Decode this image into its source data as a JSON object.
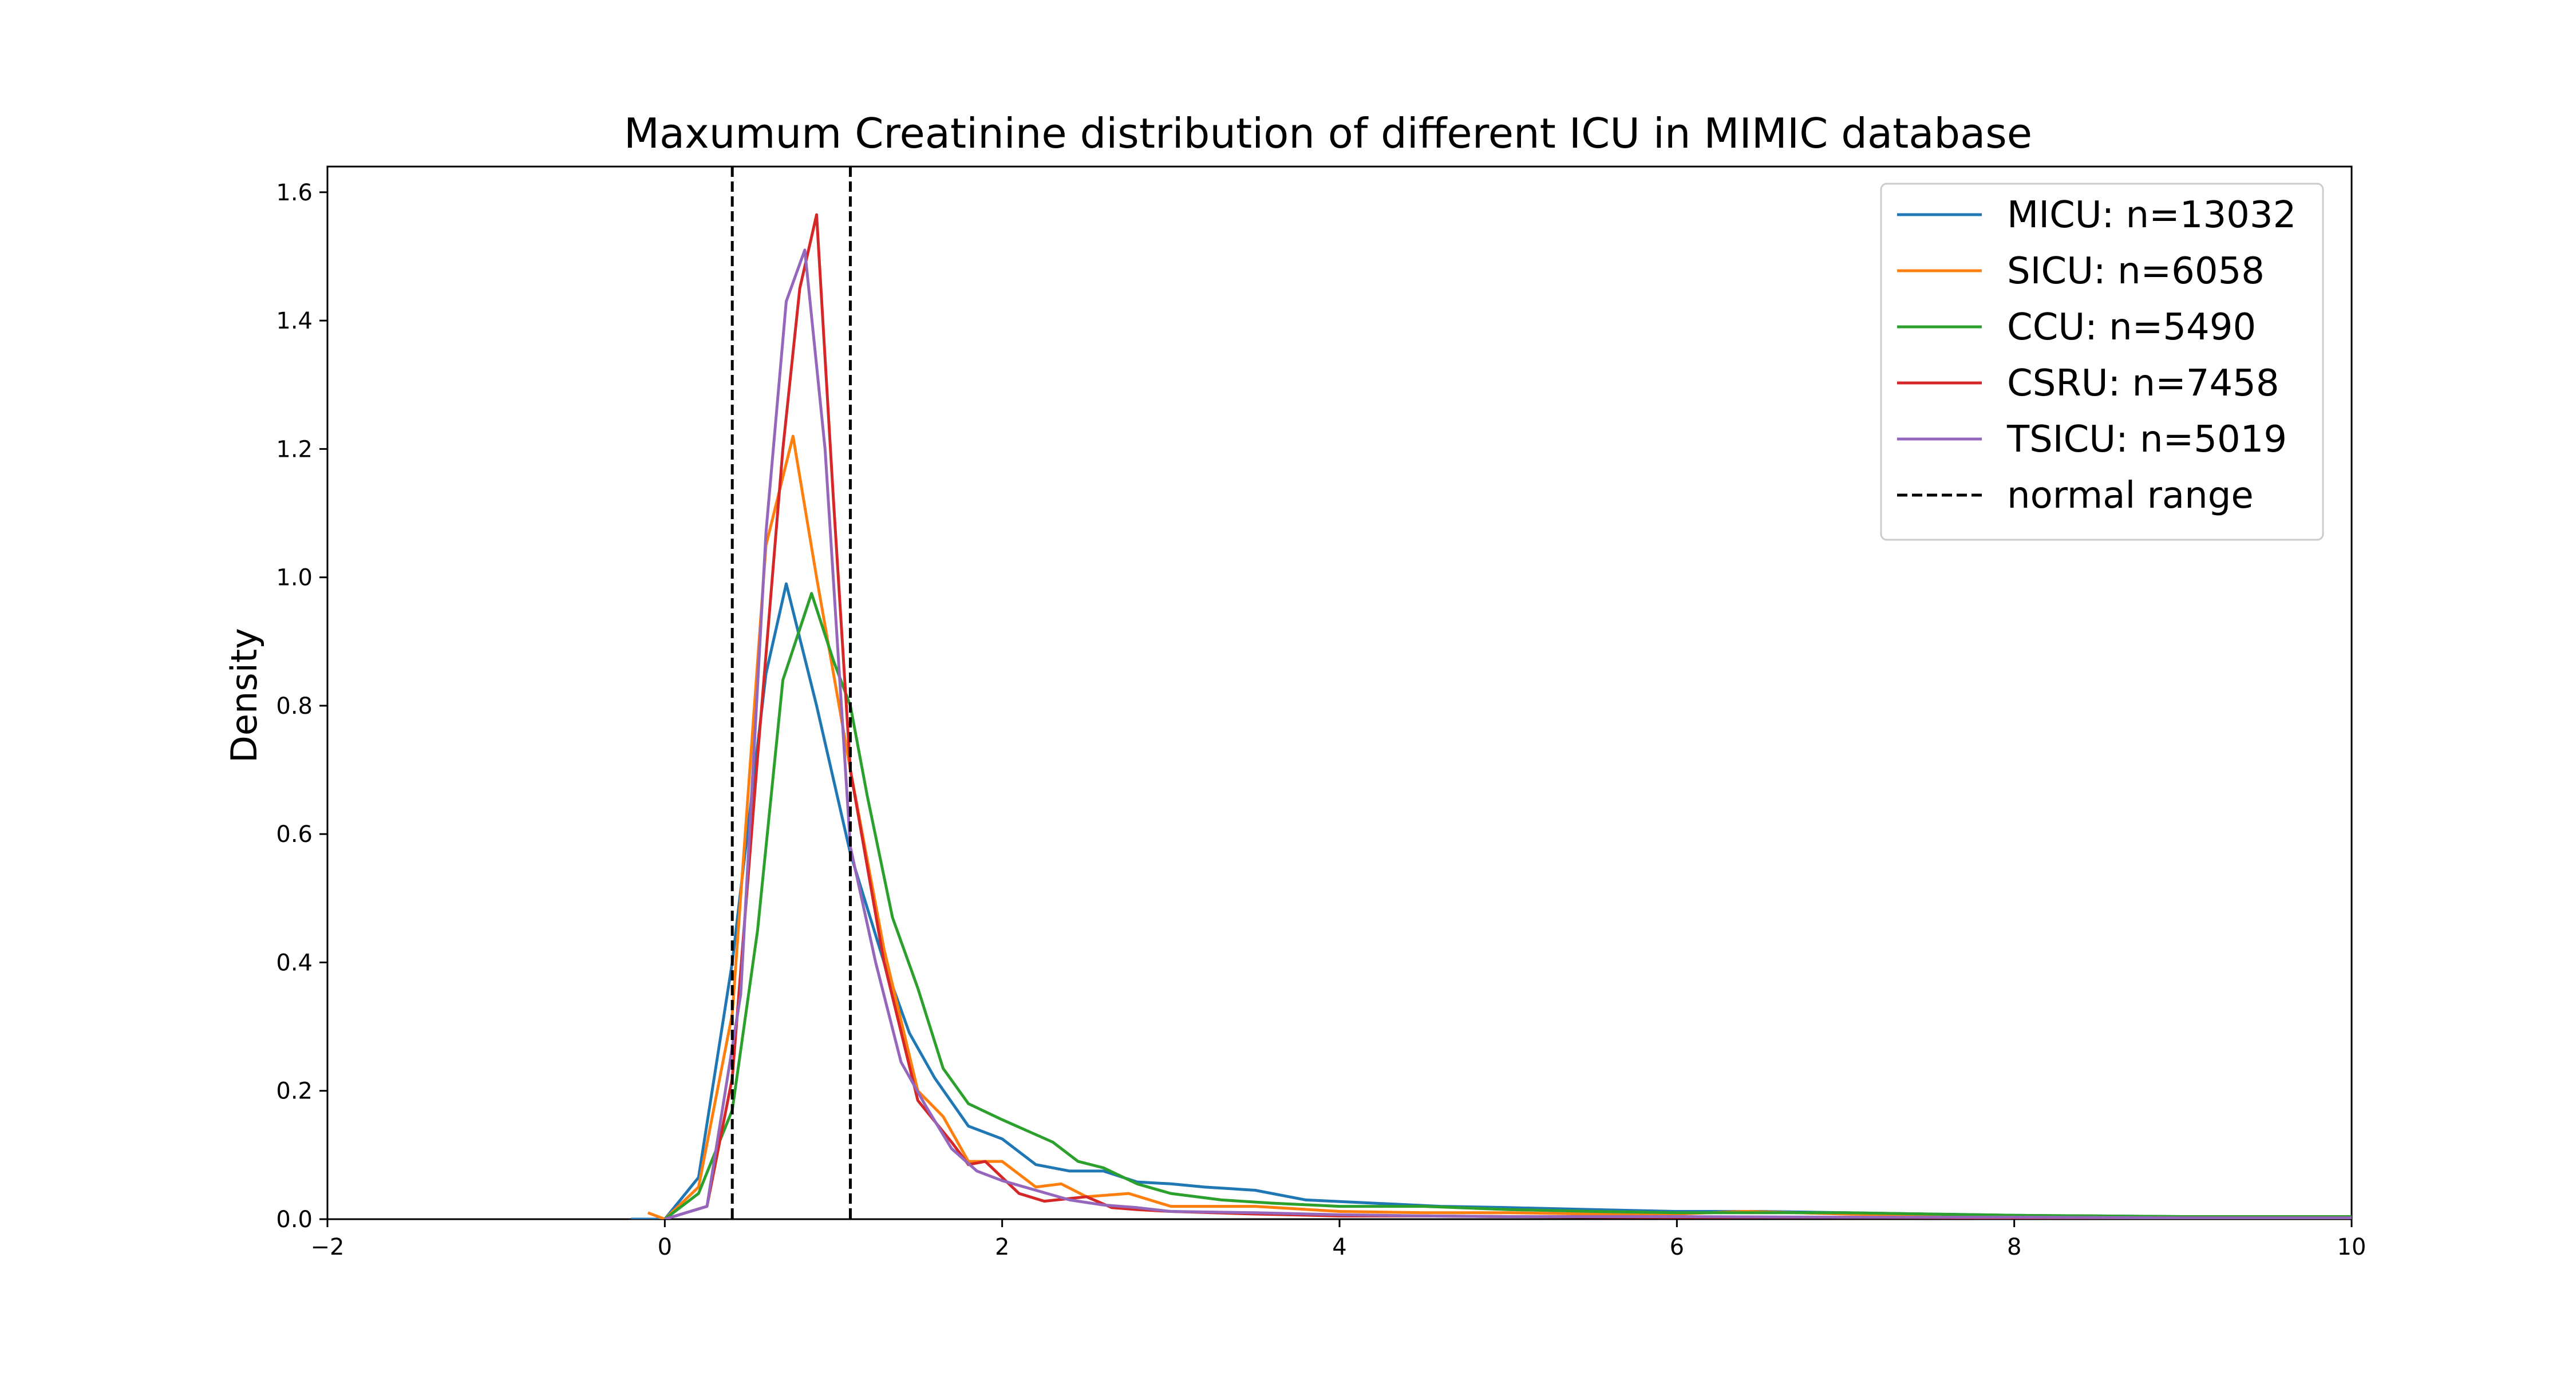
{
  "chart_data": {
    "type": "line",
    "title": "Maxumum Creatinine distribution of different ICU in MIMIC database",
    "xlabel": "",
    "ylabel": "Density",
    "xlim": [
      -2,
      10
    ],
    "ylim": [
      0,
      1.64
    ],
    "xticks": [
      -2,
      0,
      2,
      4,
      6,
      8,
      10
    ],
    "yticks": [
      0.0,
      0.2,
      0.4,
      0.6,
      0.8,
      1.0,
      1.2,
      1.4,
      1.6
    ],
    "xtick_labels": [
      "−2",
      "0",
      "2",
      "4",
      "6",
      "8",
      "10"
    ],
    "ytick_labels": [
      "0.0",
      "0.2",
      "0.4",
      "0.6",
      "0.8",
      "1.0",
      "1.2",
      "1.4",
      "1.6"
    ],
    "grid": false,
    "legend_position": "top-right",
    "reference_lines": [
      {
        "x": 0.4,
        "style": "dashed",
        "color": "#000000"
      },
      {
        "x": 1.1,
        "style": "dashed",
        "color": "#000000"
      }
    ],
    "series": [
      {
        "name": "MICU: n=13032",
        "color": "#1f77b4",
        "style": "solid",
        "points": [
          [
            -0.2,
            0.0
          ],
          [
            0.0,
            0.0
          ],
          [
            0.2,
            0.065
          ],
          [
            0.4,
            0.4
          ],
          [
            0.6,
            0.85
          ],
          [
            0.72,
            0.99
          ],
          [
            0.9,
            0.8
          ],
          [
            1.1,
            0.57
          ],
          [
            1.3,
            0.4
          ],
          [
            1.45,
            0.29
          ],
          [
            1.6,
            0.22
          ],
          [
            1.8,
            0.145
          ],
          [
            2.0,
            0.125
          ],
          [
            2.2,
            0.085
          ],
          [
            2.4,
            0.075
          ],
          [
            2.6,
            0.075
          ],
          [
            2.8,
            0.058
          ],
          [
            3.0,
            0.055
          ],
          [
            3.2,
            0.05
          ],
          [
            3.5,
            0.045
          ],
          [
            3.8,
            0.03
          ],
          [
            4.2,
            0.025
          ],
          [
            4.6,
            0.02
          ],
          [
            5.0,
            0.018
          ],
          [
            5.5,
            0.015
          ],
          [
            6.0,
            0.012
          ],
          [
            6.5,
            0.012
          ],
          [
            7.0,
            0.01
          ],
          [
            7.5,
            0.008
          ],
          [
            8.0,
            0.006
          ],
          [
            8.5,
            0.005
          ],
          [
            9.0,
            0.004
          ],
          [
            9.5,
            0.003
          ],
          [
            10.0,
            0.004
          ]
        ]
      },
      {
        "name": "SICU: n=6058",
        "color": "#ff7f0e",
        "style": "solid",
        "points": [
          [
            -0.1,
            0.01
          ],
          [
            0.0,
            0.0
          ],
          [
            0.2,
            0.05
          ],
          [
            0.4,
            0.32
          ],
          [
            0.6,
            1.05
          ],
          [
            0.76,
            1.22
          ],
          [
            0.9,
            1.0
          ],
          [
            1.1,
            0.7
          ],
          [
            1.3,
            0.42
          ],
          [
            1.5,
            0.2
          ],
          [
            1.65,
            0.16
          ],
          [
            1.8,
            0.09
          ],
          [
            2.0,
            0.09
          ],
          [
            2.2,
            0.05
          ],
          [
            2.35,
            0.055
          ],
          [
            2.5,
            0.035
          ],
          [
            2.75,
            0.04
          ],
          [
            3.0,
            0.02
          ],
          [
            3.5,
            0.02
          ],
          [
            4.0,
            0.012
          ],
          [
            4.5,
            0.01
          ],
          [
            5.0,
            0.01
          ],
          [
            5.5,
            0.008
          ],
          [
            6.0,
            0.008
          ],
          [
            6.4,
            0.012
          ],
          [
            7.0,
            0.008
          ],
          [
            7.5,
            0.006
          ],
          [
            8.0,
            0.005
          ],
          [
            8.5,
            0.005
          ],
          [
            9.0,
            0.003
          ],
          [
            9.5,
            0.003
          ],
          [
            10.0,
            0.002
          ]
        ]
      },
      {
        "name": "CCU: n=5490",
        "color": "#2ca02c",
        "style": "solid",
        "points": [
          [
            0.0,
            0.0
          ],
          [
            0.2,
            0.04
          ],
          [
            0.4,
            0.17
          ],
          [
            0.55,
            0.45
          ],
          [
            0.7,
            0.84
          ],
          [
            0.87,
            0.975
          ],
          [
            1.0,
            0.87
          ],
          [
            1.1,
            0.8
          ],
          [
            1.2,
            0.66
          ],
          [
            1.35,
            0.47
          ],
          [
            1.5,
            0.36
          ],
          [
            1.65,
            0.235
          ],
          [
            1.8,
            0.18
          ],
          [
            2.0,
            0.155
          ],
          [
            2.3,
            0.12
          ],
          [
            2.45,
            0.09
          ],
          [
            2.6,
            0.08
          ],
          [
            2.8,
            0.055
          ],
          [
            3.0,
            0.04
          ],
          [
            3.3,
            0.03
          ],
          [
            3.6,
            0.025
          ],
          [
            4.0,
            0.02
          ],
          [
            4.5,
            0.02
          ],
          [
            5.0,
            0.015
          ],
          [
            5.5,
            0.012
          ],
          [
            6.0,
            0.01
          ],
          [
            7.0,
            0.01
          ],
          [
            8.0,
            0.006
          ],
          [
            9.0,
            0.004
          ],
          [
            10.0,
            0.004
          ]
        ]
      },
      {
        "name": "CSRU: n=7458",
        "color": "#d62728",
        "style": "solid",
        "points": [
          [
            0.0,
            0.0
          ],
          [
            0.25,
            0.02
          ],
          [
            0.4,
            0.22
          ],
          [
            0.55,
            0.72
          ],
          [
            0.7,
            1.2
          ],
          [
            0.8,
            1.45
          ],
          [
            0.9,
            1.565
          ],
          [
            1.0,
            1.12
          ],
          [
            1.1,
            0.7
          ],
          [
            1.3,
            0.4
          ],
          [
            1.5,
            0.185
          ],
          [
            1.7,
            0.12
          ],
          [
            1.8,
            0.085
          ],
          [
            1.9,
            0.09
          ],
          [
            2.1,
            0.04
          ],
          [
            2.25,
            0.028
          ],
          [
            2.5,
            0.035
          ],
          [
            2.65,
            0.018
          ],
          [
            2.8,
            0.015
          ],
          [
            3.0,
            0.012
          ],
          [
            3.5,
            0.008
          ],
          [
            4.0,
            0.005
          ],
          [
            4.5,
            0.005
          ],
          [
            5.0,
            0.004
          ],
          [
            6.0,
            0.003
          ],
          [
            7.0,
            0.003
          ],
          [
            8.0,
            0.002
          ],
          [
            9.0,
            0.002
          ],
          [
            10.0,
            0.002
          ]
        ]
      },
      {
        "name": "TSICU: n=5019",
        "color": "#9467bd",
        "style": "solid",
        "points": [
          [
            0.0,
            0.0
          ],
          [
            0.25,
            0.02
          ],
          [
            0.45,
            0.35
          ],
          [
            0.6,
            1.07
          ],
          [
            0.72,
            1.43
          ],
          [
            0.83,
            1.51
          ],
          [
            0.95,
            1.2
          ],
          [
            1.1,
            0.58
          ],
          [
            1.25,
            0.4
          ],
          [
            1.4,
            0.245
          ],
          [
            1.55,
            0.175
          ],
          [
            1.7,
            0.11
          ],
          [
            1.85,
            0.075
          ],
          [
            2.0,
            0.06
          ],
          [
            2.2,
            0.045
          ],
          [
            2.4,
            0.03
          ],
          [
            2.6,
            0.022
          ],
          [
            2.8,
            0.018
          ],
          [
            3.0,
            0.012
          ],
          [
            3.5,
            0.01
          ],
          [
            4.0,
            0.007
          ],
          [
            4.5,
            0.005
          ],
          [
            5.0,
            0.004
          ],
          [
            6.0,
            0.004
          ],
          [
            7.0,
            0.003
          ],
          [
            8.0,
            0.003
          ],
          [
            9.0,
            0.002
          ],
          [
            10.0,
            0.002
          ]
        ]
      }
    ],
    "legend_extra": "normal range"
  }
}
